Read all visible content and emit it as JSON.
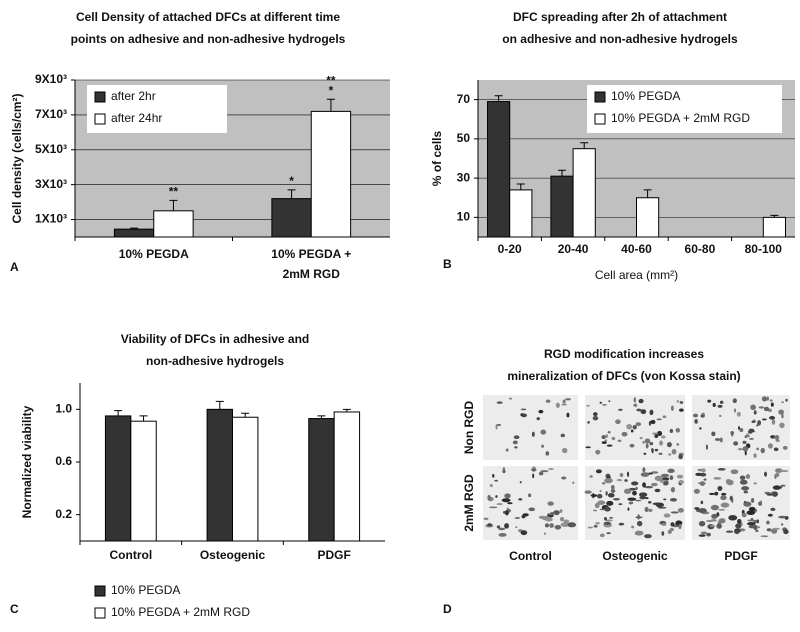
{
  "chart_data": [
    {
      "type": "bar",
      "panel": "A",
      "title": [
        "Cell Density of attached DFCs at different time",
        "points on adhesive and non-adhesive hydrogels"
      ],
      "y_label": "Cell density (cells/cm²)",
      "categories": [
        [
          "10% PEGDA"
        ],
        [
          "10% PEGDA +",
          "2mM RGD"
        ]
      ],
      "series": [
        {
          "name": "after 2hr",
          "color": "#333333",
          "values": [
            450,
            2200
          ],
          "errors": [
            60,
            500
          ],
          "annotations": [
            null,
            [
              "*"
            ]
          ]
        },
        {
          "name": "after 24hr",
          "color": "#ffffff",
          "values": [
            1500,
            7200
          ],
          "errors": [
            600,
            700
          ],
          "annotations": [
            [
              "**"
            ],
            [
              "**",
              "*"
            ]
          ]
        }
      ],
      "ylim": [
        0,
        9000
      ],
      "yticks": [
        {
          "value": 1000,
          "label": "1X10³"
        },
        {
          "value": 3000,
          "label": "3X10³"
        },
        {
          "value": 5000,
          "label": "5X10³"
        },
        {
          "value": 7000,
          "label": "7X10³"
        },
        {
          "value": 9000,
          "label": "9X10³"
        }
      ],
      "grid": true,
      "background": "#c0c0c0",
      "legend": "upper left"
    },
    {
      "type": "bar",
      "panel": "B",
      "title": [
        "DFC spreading after 2h of attachment",
        "on adhesive and non-adhesive hydrogels"
      ],
      "y_label": "% of cells",
      "x_label": "Cell area (mm²)",
      "categories": [
        "0-20",
        "20-40",
        "40-60",
        "60-80",
        "80-100"
      ],
      "series": [
        {
          "name": "10% PEGDA",
          "color": "#333333",
          "values": [
            69,
            31,
            null,
            null,
            null
          ],
          "errors": [
            3,
            3,
            null,
            null,
            null
          ]
        },
        {
          "name": "10% PEGDA +  2mM RGD",
          "color": "#ffffff",
          "values": [
            24,
            45,
            20,
            null,
            10
          ],
          "errors": [
            3,
            3,
            4,
            null,
            1
          ]
        }
      ],
      "ylim": [
        0,
        80
      ],
      "yticks": [
        10,
        30,
        50,
        70
      ],
      "grid": true,
      "background": "#c0c0c0",
      "legend": "upper right"
    },
    {
      "type": "bar",
      "panel": "C",
      "title": [
        "Viability of DFCs in adhesive and",
        "non-adhesive hydrogels"
      ],
      "y_label": "Normalized viability",
      "categories": [
        "Control",
        "Osteogenic",
        "PDGF"
      ],
      "series": [
        {
          "name": "10% PEGDA",
          "color": "#333333",
          "values": [
            0.95,
            1.0,
            0.93
          ],
          "errors": [
            0.04,
            0.06,
            0.02
          ]
        },
        {
          "name": "10% PEGDA +  2mM RGD",
          "color": "#ffffff",
          "values": [
            0.91,
            0.94,
            0.98
          ],
          "errors": [
            0.04,
            0.03,
            0.02
          ]
        }
      ],
      "ylim": [
        0,
        1.2
      ],
      "yticks": [
        0.2,
        0.6,
        {
          "value": 1,
          "label": "1.0"
        }
      ],
      "grid": false,
      "background": "#ffffff",
      "legend": "below"
    }
  ],
  "panel_d": {
    "panel": "D",
    "title": [
      "RGD modification increases",
      "mineralization of DFCs (von Kossa stain)"
    ],
    "rows": [
      "Non RGD",
      "2mM RGD"
    ],
    "columns": [
      "Control",
      "Osteogenic",
      "PDGF"
    ]
  }
}
